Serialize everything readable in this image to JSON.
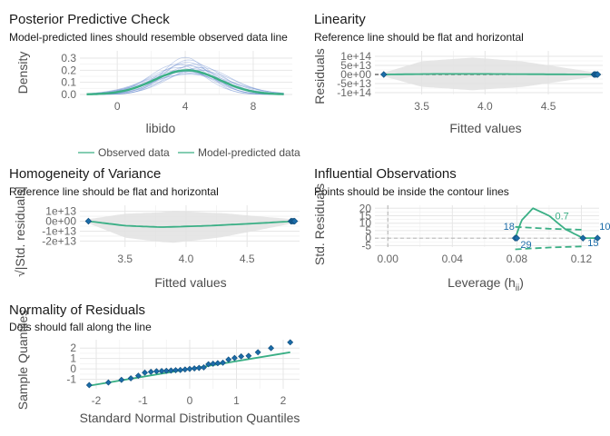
{
  "colors": {
    "green": "#3aaf85",
    "blue": "#1b6ca8",
    "band": "#e8e8e8",
    "grid": "#e6e6e6"
  },
  "chart_data": [
    {
      "type": "line",
      "id": "ppc",
      "title": "Posterior Predictive Check",
      "subtitle": "Model-predicted lines should resemble observed data line",
      "xlabel": "libido",
      "ylabel": "Density",
      "xlim": [
        -2.2,
        10.3
      ],
      "ylim": [
        0,
        0.36
      ],
      "xticks": [
        "0",
        "4",
        "8"
      ],
      "xtick_values": [
        0,
        4,
        8
      ],
      "yticks": [
        "0.0",
        "0.1",
        "0.2",
        "0.3"
      ],
      "ytick_values": [
        0,
        0.1,
        0.2,
        0.3
      ],
      "legend": [
        "Observed data",
        "Model-predicted data"
      ],
      "legend_position": "bottom",
      "series": [
        {
          "name": "Observed data",
          "mean": 4.1,
          "sd": 1.9,
          "peak": 0.2
        },
        {
          "name": "Model-predicted data",
          "draws": [
            {
              "mean": 3.9,
              "sd": 1.6
            },
            {
              "mean": 4.3,
              "sd": 1.7
            },
            {
              "mean": 4.0,
              "sd": 2.1
            },
            {
              "mean": 4.5,
              "sd": 1.9
            },
            {
              "mean": 3.6,
              "sd": 1.8
            },
            {
              "mean": 4.2,
              "sd": 1.4
            },
            {
              "mean": 4.8,
              "sd": 2.0
            },
            {
              "mean": 3.8,
              "sd": 2.2
            },
            {
              "mean": 4.1,
              "sd": 1.5
            },
            {
              "mean": 4.4,
              "sd": 2.3
            },
            {
              "mean": 3.5,
              "sd": 1.6
            },
            {
              "mean": 4.6,
              "sd": 1.6
            },
            {
              "mean": 4.0,
              "sd": 1.3
            },
            {
              "mean": 3.7,
              "sd": 2.0
            },
            {
              "mean": 4.9,
              "sd": 1.8
            },
            {
              "mean": 4.2,
              "sd": 2.4
            }
          ]
        }
      ]
    },
    {
      "type": "scatter",
      "id": "lin",
      "title": "Linearity",
      "subtitle": "Reference line should be flat and horizontal",
      "xlabel": "Fitted values",
      "ylabel": "Residuals",
      "xlim": [
        3.13,
        4.93
      ],
      "ylim": [
        -110000000000000.0,
        130000000000000.0
      ],
      "xticks": [
        "3.5",
        "4.0",
        "4.5"
      ],
      "xtick_values": [
        3.5,
        4.0,
        4.5
      ],
      "yticks": [
        "1e+14",
        "5e+13",
        "0e+00",
        "-5e+13",
        "-1e+14"
      ],
      "ytick_values": [
        100000000000000.0,
        50000000000000.0,
        0,
        -50000000000000.0,
        -100000000000000.0
      ],
      "points": [
        {
          "x": 3.2,
          "y": 0
        },
        {
          "x": 4.86,
          "y": 0
        },
        {
          "x": 4.87,
          "y": 0
        },
        {
          "x": 4.88,
          "y": 0
        },
        {
          "x": 4.89,
          "y": 0
        }
      ],
      "fit": [
        {
          "x": 3.2,
          "y": 0
        },
        {
          "x": 3.6,
          "y": 3000000000000.0
        },
        {
          "x": 4.0,
          "y": 3000000000000.0
        },
        {
          "x": 4.4,
          "y": 1500000000000.0
        },
        {
          "x": 4.88,
          "y": 0
        }
      ],
      "band_halfwidth": [
        {
          "x": 3.2,
          "y": 10000000000000.0
        },
        {
          "x": 3.5,
          "y": 70000000000000.0
        },
        {
          "x": 3.9,
          "y": 90000000000000.0
        },
        {
          "x": 4.3,
          "y": 70000000000000.0
        },
        {
          "x": 4.88,
          "y": 10000000000000.0
        }
      ],
      "reference_line": 0
    },
    {
      "type": "scatter",
      "id": "hov",
      "title": "Homogeneity of Variance",
      "subtitle": "Reference line should be flat and horizontal",
      "xlabel": "Fitted values",
      "ylabel": "√|Std. residuals|",
      "xlim": [
        3.13,
        4.93
      ],
      "ylim": [
        -26000000000000.0,
        16000000000000.0
      ],
      "xticks": [
        "3.5",
        "4.0",
        "4.5"
      ],
      "xtick_values": [
        3.5,
        4.0,
        4.5
      ],
      "yticks": [
        "1e+13",
        "0e+00",
        "-1e+13",
        "-2e+13"
      ],
      "ytick_values": [
        10000000000000.0,
        0,
        -10000000000000.0,
        -20000000000000.0
      ],
      "points": [
        {
          "x": 3.2,
          "y": 0
        },
        {
          "x": 4.86,
          "y": 0
        },
        {
          "x": 4.87,
          "y": 0
        },
        {
          "x": 4.88,
          "y": 0
        },
        {
          "x": 4.89,
          "y": 0
        }
      ],
      "fit": [
        {
          "x": 3.2,
          "y": 0
        },
        {
          "x": 3.5,
          "y": -4500000000000.0
        },
        {
          "x": 3.8,
          "y": -6000000000000.0
        },
        {
          "x": 4.2,
          "y": -4500000000000.0
        },
        {
          "x": 4.6,
          "y": -2000000000000.0
        },
        {
          "x": 4.88,
          "y": 0
        }
      ],
      "band_halfwidth": [
        {
          "x": 3.2,
          "y": 2000000000000.0
        },
        {
          "x": 3.5,
          "y": 12000000000000.0
        },
        {
          "x": 3.9,
          "y": 16000000000000.0
        },
        {
          "x": 4.3,
          "y": 12000000000000.0
        },
        {
          "x": 4.88,
          "y": 2000000000000.0
        }
      ]
    },
    {
      "type": "scatter",
      "id": "inf",
      "title": "Influential Observations",
      "subtitle": "Points should be inside the contour lines",
      "xlabel": "Leverage (h",
      "xlabel_sub": "ii",
      "xlabel_close": ")",
      "ylabel": "Std. Residuals",
      "xlim": [
        -0.008,
        0.131
      ],
      "ylim": [
        -6,
        22
      ],
      "xticks": [
        "0.00",
        "0.04",
        "0.08",
        "0.12"
      ],
      "xtick_values": [
        0,
        0.04,
        0.08,
        0.12
      ],
      "yticks": [
        "20",
        "15",
        "10",
        "5",
        "0",
        "-5"
      ],
      "ytick_values": [
        20,
        15,
        10,
        5,
        0,
        -5
      ],
      "points": [
        {
          "x": 0.079,
          "y": 0,
          "label": "18"
        },
        {
          "x": 0.08,
          "y": 0,
          "label": "29"
        },
        {
          "x": 0.121,
          "y": 0,
          "label": "15"
        },
        {
          "x": 0.13,
          "y": 0,
          "label": "10"
        }
      ],
      "fit": [
        {
          "x": 0.079,
          "y": 0
        },
        {
          "x": 0.083,
          "y": 12
        },
        {
          "x": 0.09,
          "y": 20
        },
        {
          "x": 0.1,
          "y": 15
        },
        {
          "x": 0.11,
          "y": 6
        },
        {
          "x": 0.121,
          "y": 0
        },
        {
          "x": 0.13,
          "y": 0
        }
      ],
      "contour_label": "0.7",
      "contour_upper": [
        {
          "x": 0.079,
          "y": 7.5
        },
        {
          "x": 0.1,
          "y": 6.3
        },
        {
          "x": 0.12,
          "y": 5.6
        }
      ],
      "contour_lower": [
        {
          "x": 0.079,
          "y": -7.5
        },
        {
          "x": 0.1,
          "y": -6.3
        },
        {
          "x": 0.12,
          "y": -5.6
        }
      ]
    },
    {
      "type": "scatter",
      "id": "qq",
      "title": "Normality of Residuals",
      "subtitle": "Dots should fall along the line",
      "xlabel": "Standard Normal Distribution Quantiles",
      "ylabel": "Sample Quantiles",
      "xlim": [
        -2.35,
        2.35
      ],
      "ylim": [
        -1.9,
        2.8
      ],
      "xticks": [
        "-2",
        "-1",
        "0",
        "1",
        "2"
      ],
      "xtick_values": [
        -2,
        -1,
        0,
        1,
        2
      ],
      "yticks": [
        "2",
        "1",
        "0",
        "-1"
      ],
      "ytick_values": [
        2,
        1,
        0,
        -1
      ],
      "points": [
        {
          "x": -2.15,
          "y": -1.55
        },
        {
          "x": -1.74,
          "y": -1.3
        },
        {
          "x": -1.46,
          "y": -1.05
        },
        {
          "x": -1.26,
          "y": -0.9
        },
        {
          "x": -1.1,
          "y": -0.65
        },
        {
          "x": -0.96,
          "y": -0.35
        },
        {
          "x": -0.83,
          "y": -0.28
        },
        {
          "x": -0.71,
          "y": -0.22
        },
        {
          "x": -0.6,
          "y": -0.2
        },
        {
          "x": -0.5,
          "y": -0.18
        },
        {
          "x": -0.4,
          "y": -0.15
        },
        {
          "x": -0.3,
          "y": -0.12
        },
        {
          "x": -0.2,
          "y": -0.1
        },
        {
          "x": -0.1,
          "y": -0.05
        },
        {
          "x": 0.0,
          "y": 0.0
        },
        {
          "x": 0.1,
          "y": 0.05
        },
        {
          "x": 0.2,
          "y": 0.1
        },
        {
          "x": 0.3,
          "y": 0.15
        },
        {
          "x": 0.4,
          "y": 0.45
        },
        {
          "x": 0.5,
          "y": 0.5
        },
        {
          "x": 0.6,
          "y": 0.55
        },
        {
          "x": 0.71,
          "y": 0.6
        },
        {
          "x": 0.83,
          "y": 0.9
        },
        {
          "x": 0.96,
          "y": 1.05
        },
        {
          "x": 1.1,
          "y": 1.2
        },
        {
          "x": 1.26,
          "y": 1.25
        },
        {
          "x": 1.46,
          "y": 1.6
        },
        {
          "x": 1.74,
          "y": 2.0
        },
        {
          "x": 2.15,
          "y": 2.55
        }
      ],
      "reference_line": [
        {
          "x": -2.15,
          "y": -1.6
        },
        {
          "x": 2.15,
          "y": 1.6
        }
      ]
    }
  ]
}
